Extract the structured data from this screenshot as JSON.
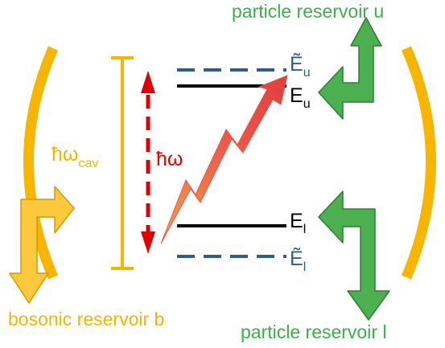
{
  "colors": {
    "green": "#4caf50",
    "green_stroke": "#2e7d32",
    "orange": "#f7b500",
    "orange_arrow": "#fcc83c",
    "red": "#e00000",
    "blue": "#2f5e8e",
    "black": "#000000"
  },
  "labels": {
    "reservoir_u": "particle reservoir u",
    "reservoir_l": "particle reservoir l",
    "reservoir_b": "bosonic reservoir b",
    "cavity_energy": {
      "base": "ħω",
      "sub": "cav"
    },
    "photon_energy": "ħω",
    "level_u": {
      "base": "E",
      "sub": "u"
    },
    "level_u_dressed": {
      "base": "Ẽ",
      "sub": "u"
    },
    "level_l": {
      "base": "E",
      "sub": "l"
    },
    "level_l_dressed": {
      "base": "Ẽ",
      "sub": "l"
    }
  }
}
